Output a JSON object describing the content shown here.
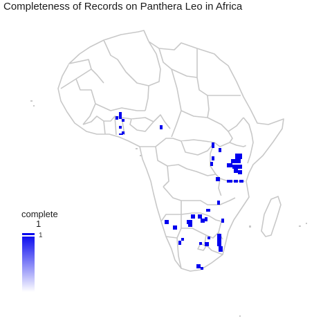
{
  "title": "Completeness of Records on Panthera Leo in Africa",
  "legend": {
    "title": "complete",
    "subtitle": "1",
    "tick_label": "1",
    "color_high": "#0000ee",
    "color_low": "#ffffff"
  },
  "colors": {
    "border": "#c8c8c8",
    "land": "#ffffff",
    "fill": "#0000ee"
  },
  "regions_with_records": [
    "Nigeria",
    "Benin",
    "Cameroon",
    "Uganda",
    "Kenya",
    "Tanzania",
    "Zambia",
    "Zimbabwe",
    "Botswana",
    "Namibia",
    "Mozambique",
    "South Africa"
  ]
}
